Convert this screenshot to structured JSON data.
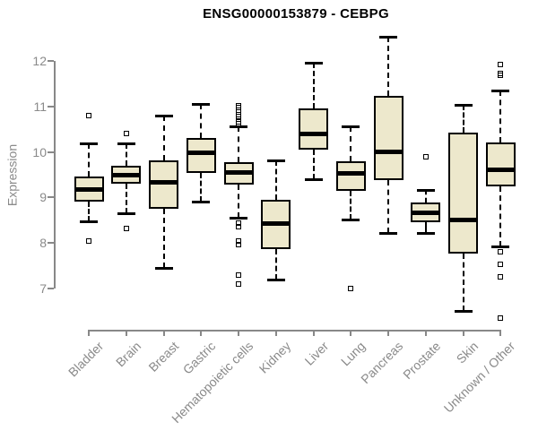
{
  "chart_data": {
    "type": "boxplot",
    "title": "ENSG00000153879 - CEBPG",
    "ylabel": "Expression",
    "xlabel": "",
    "ylim": [
      7,
      12
    ],
    "yticks": [
      7,
      8,
      9,
      10,
      11,
      12
    ],
    "grid": "off",
    "legend": "none",
    "categories": [
      "Bladder",
      "Brain",
      "Breast",
      "Gastric",
      "Hematopoietic cells",
      "Kidney",
      "Liver",
      "Lung",
      "Pancreas",
      "Prostate",
      "Skin",
      "Unknown / Other"
    ],
    "series": [
      {
        "name": "Bladder",
        "low": 8.48,
        "q1": 8.91,
        "median": 9.17,
        "q3": 9.46,
        "high": 10.19,
        "outliers": [
          10.8,
          8.05
        ]
      },
      {
        "name": "Brain",
        "low": 8.65,
        "q1": 9.3,
        "median": 9.49,
        "q3": 9.7,
        "high": 10.19,
        "outliers": [
          10.4,
          8.32
        ]
      },
      {
        "name": "Breast",
        "low": 7.45,
        "q1": 8.76,
        "median": 9.33,
        "q3": 9.81,
        "high": 10.79,
        "outliers": []
      },
      {
        "name": "Gastric",
        "low": 8.91,
        "q1": 9.53,
        "median": 9.99,
        "q3": 10.31,
        "high": 11.05,
        "outliers": []
      },
      {
        "name": "Hematopoietic cells",
        "low": 8.56,
        "q1": 9.28,
        "median": 9.55,
        "q3": 9.78,
        "high": 10.56,
        "outliers": [
          11.02,
          10.97,
          10.92,
          10.87,
          10.82,
          10.77,
          10.72,
          10.67,
          10.62,
          8.44,
          8.35,
          8.04,
          7.97,
          7.3,
          7.1
        ]
      },
      {
        "name": "Kidney",
        "low": 7.2,
        "q1": 7.86,
        "median": 8.42,
        "q3": 8.94,
        "high": 9.82,
        "outliers": []
      },
      {
        "name": "Liver",
        "low": 9.4,
        "q1": 10.05,
        "median": 10.4,
        "q3": 10.96,
        "high": 11.97,
        "outliers": []
      },
      {
        "name": "Lung",
        "low": 8.52,
        "q1": 9.14,
        "median": 9.52,
        "q3": 9.79,
        "high": 10.57,
        "outliers": [
          7.0
        ]
      },
      {
        "name": "Pancreas",
        "low": 8.22,
        "q1": 9.39,
        "median": 10.0,
        "q3": 11.23,
        "high": 12.54,
        "outliers": []
      },
      {
        "name": "Prostate",
        "low": 8.23,
        "q1": 8.46,
        "median": 8.66,
        "q3": 8.89,
        "high": 9.17,
        "outliers": [
          9.9
        ]
      },
      {
        "name": "Skin",
        "low": 6.51,
        "q1": 7.77,
        "median": 8.5,
        "q3": 10.43,
        "high": 11.03,
        "outliers": []
      },
      {
        "name": "Unknown / Other",
        "low": 7.93,
        "q1": 9.24,
        "median": 9.6,
        "q3": 10.2,
        "high": 11.36,
        "outliers": [
          11.93,
          11.72,
          11.68,
          7.81,
          7.53,
          7.26,
          6.35
        ]
      }
    ],
    "colors": {
      "box_fill": "#EDE8CC",
      "box_stroke": "#000000",
      "axis": "#888888",
      "tick_text": "#8a8a8a",
      "title_text": "#000000",
      "background": "#ffffff"
    }
  }
}
